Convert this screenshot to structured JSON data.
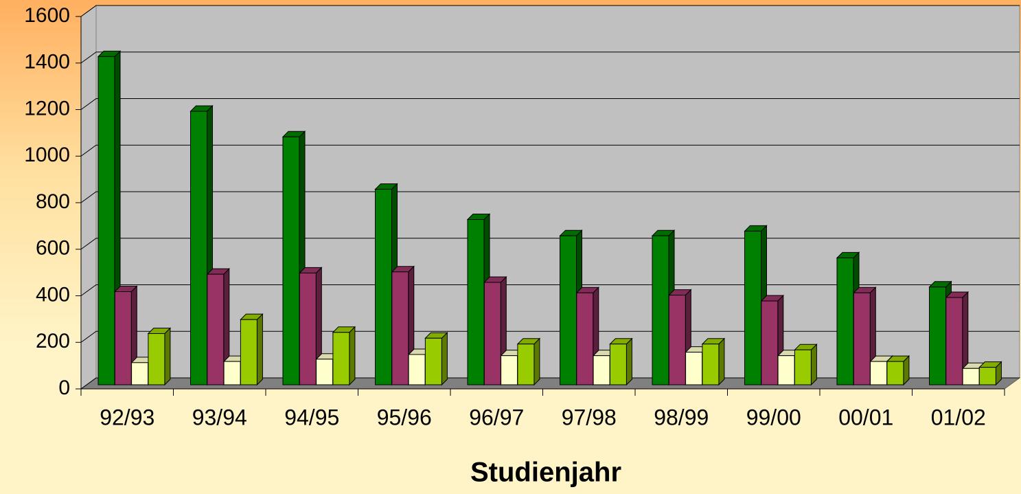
{
  "chart_data": {
    "type": "bar3d",
    "x_label": "Studienjahr",
    "categories": [
      "92/93",
      "93/94",
      "94/95",
      "95/96",
      "96/97",
      "97/98",
      "98/99",
      "99/00",
      "00/01",
      "01/02"
    ],
    "series": [
      {
        "color": "#008000",
        "values": [
          1410,
          1175,
          1065,
          840,
          710,
          640,
          640,
          660,
          545,
          420
        ]
      },
      {
        "color": "#993366",
        "values": [
          400,
          475,
          480,
          485,
          440,
          395,
          385,
          360,
          395,
          375
        ]
      },
      {
        "color": "#ffffcc",
        "values": [
          95,
          100,
          110,
          130,
          125,
          125,
          140,
          125,
          100,
          70
        ]
      },
      {
        "color": "#99cc00",
        "values": [
          220,
          280,
          225,
          200,
          175,
          175,
          175,
          150,
          100,
          75
        ]
      }
    ],
    "ylim": [
      0,
      1600
    ],
    "yticks": [
      0,
      200,
      400,
      600,
      800,
      1000,
      1200,
      1400,
      1600
    ],
    "grid": true
  }
}
